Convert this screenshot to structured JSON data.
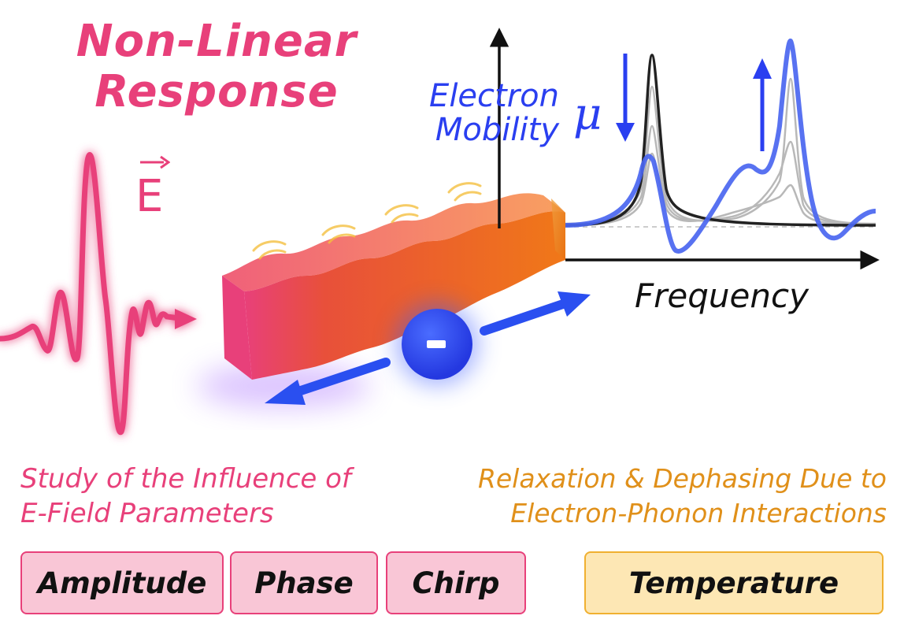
{
  "title": {
    "line1": "Non-Linear",
    "line2": "Response"
  },
  "field_symbol": "E",
  "plot": {
    "y_label_line1": "Electron",
    "y_label_line2": "Mobility",
    "y_symbol": "μ",
    "x_label": "Frequency"
  },
  "captions": {
    "left_line1": "Study of the Influence of",
    "left_line2": "E-Field Parameters",
    "right_line1": "Relaxation & Dephasing Due to",
    "right_line2": "Electron-Phonon Interactions"
  },
  "parameters": {
    "amplitude": "Amplitude",
    "phase": "Phase",
    "chirp": "Chirp",
    "temperature": "Temperature"
  },
  "colors": {
    "pink": "#e8407a",
    "blue": "#2a3ff0",
    "orange": "#e0901a",
    "pink_box": "#f9c6d6",
    "yellow_box": "#fde7b4"
  },
  "icons": [
    "electric-field-pulse-icon",
    "nanowire-icon",
    "electron-icon",
    "arrow-icon"
  ]
}
